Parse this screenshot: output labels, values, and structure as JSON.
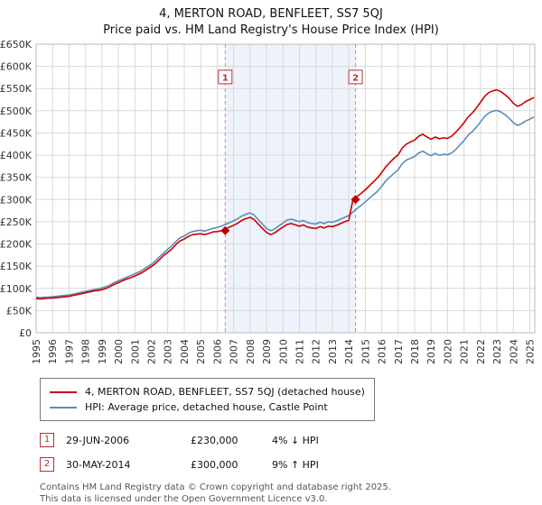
{
  "header": {
    "title": "4, MERTON ROAD, BENFLEET, SS7 5QJ",
    "subtitle": "Price paid vs. HM Land Registry's House Price Index (HPI)"
  },
  "chart_data": {
    "type": "line",
    "title": "4, MERTON ROAD, BENFLEET, SS7 5QJ",
    "subtitle": "Price paid vs. HM Land Registry's House Price Index (HPI)",
    "xlabel": "",
    "ylabel": "",
    "unit": "GBP thousands",
    "xlim": [
      1995,
      2025.3
    ],
    "ylim": [
      0,
      650
    ],
    "y_tick_step": 50,
    "x_tick_start": 1995,
    "x_tick_end": 2025,
    "flag_value": 575,
    "colors": {
      "shade": "#eef2fa",
      "grid": "#d8d8d8",
      "border": "#bbbbbb",
      "dashed": "#dd8888",
      "flag": "#b43333",
      "marker": "#bb0000"
    },
    "x": [
      1995,
      1995.25,
      1995.5,
      1995.75,
      1996,
      1996.25,
      1996.5,
      1996.75,
      1997,
      1997.25,
      1997.5,
      1997.75,
      1998,
      1998.25,
      1998.5,
      1998.75,
      1999,
      1999.25,
      1999.5,
      1999.75,
      2000,
      2000.25,
      2000.5,
      2000.75,
      2001,
      2001.25,
      2001.5,
      2001.75,
      2002,
      2002.25,
      2002.5,
      2002.75,
      2003,
      2003.25,
      2003.5,
      2003.75,
      2004,
      2004.25,
      2004.5,
      2004.75,
      2005,
      2005.25,
      2005.5,
      2005.75,
      2006,
      2006.25,
      2006.5,
      2006.75,
      2007,
      2007.25,
      2007.5,
      2007.75,
      2008,
      2008.25,
      2008.5,
      2008.75,
      2009,
      2009.25,
      2009.5,
      2009.75,
      2010,
      2010.25,
      2010.5,
      2010.75,
      2011,
      2011.25,
      2011.5,
      2011.75,
      2012,
      2012.25,
      2012.5,
      2012.75,
      2013,
      2013.25,
      2013.5,
      2013.75,
      2014,
      2014.25,
      2014.5,
      2014.75,
      2015,
      2015.25,
      2015.5,
      2015.75,
      2016,
      2016.25,
      2016.5,
      2016.75,
      2017,
      2017.25,
      2017.5,
      2017.75,
      2018,
      2018.25,
      2018.5,
      2018.75,
      2019,
      2019.25,
      2019.5,
      2019.75,
      2020,
      2020.25,
      2020.5,
      2020.75,
      2021,
      2021.25,
      2021.5,
      2021.75,
      2022,
      2022.25,
      2022.5,
      2022.75,
      2023,
      2023.25,
      2023.5,
      2023.75,
      2024,
      2024.25,
      2024.5,
      2024.75,
      2025,
      2025.25
    ],
    "series": [
      {
        "name": "4, MERTON ROAD, BENFLEET, SS7 5QJ (detached house)",
        "data_name": "property-price-line",
        "color": "#cc0000",
        "values": [
          77,
          76,
          77,
          78,
          78,
          79,
          80,
          81,
          82,
          84,
          86,
          88,
          90,
          92,
          94,
          95,
          97,
          100,
          104,
          109,
          113,
          117,
          121,
          124,
          128,
          132,
          137,
          143,
          149,
          156,
          165,
          174,
          181,
          189,
          199,
          207,
          211,
          217,
          221,
          222,
          223,
          221,
          224,
          227,
          228,
          230,
          234,
          238,
          242,
          247,
          253,
          257,
          260,
          255,
          245,
          235,
          226,
          221,
          225,
          232,
          238,
          244,
          246,
          243,
          240,
          243,
          238,
          236,
          235,
          239,
          236,
          240,
          239,
          242,
          246,
          250,
          253,
          300,
          307,
          314,
          322,
          331,
          340,
          349,
          361,
          374,
          384,
          393,
          401,
          416,
          425,
          430,
          434,
          443,
          447,
          441,
          436,
          441,
          437,
          439,
          438,
          443,
          452,
          462,
          473,
          486,
          495,
          506,
          519,
          532,
          541,
          545,
          547,
          543,
          536,
          528,
          517,
          510,
          514,
          521,
          525,
          530
        ]
      },
      {
        "name": "HPI: Average price, detached house, Castle Point",
        "data_name": "hpi-line",
        "color": "#5b8db8",
        "values": [
          80,
          79,
          80,
          80,
          81,
          82,
          83,
          84,
          85,
          87,
          89,
          91,
          93,
          95,
          97,
          99,
          101,
          104,
          108,
          113,
          117,
          121,
          125,
          129,
          133,
          137,
          142,
          148,
          154,
          162,
          171,
          180,
          188,
          196,
          206,
          214,
          218,
          224,
          228,
          230,
          231,
          229,
          232,
          235,
          237,
          240,
          244,
          248,
          252,
          257,
          263,
          267,
          270,
          265,
          255,
          245,
          235,
          230,
          234,
          241,
          247,
          254,
          256,
          253,
          250,
          253,
          248,
          246,
          245,
          249,
          246,
          250,
          249,
          252,
          256,
          260,
          264,
          272,
          280,
          287,
          295,
          303,
          311,
          319,
          330,
          342,
          351,
          359,
          367,
          381,
          389,
          393,
          397,
          405,
          409,
          403,
          399,
          404,
          400,
          402,
          401,
          405,
          413,
          423,
          433,
          445,
          453,
          463,
          475,
          487,
          495,
          499,
          501,
          497,
          491,
          483,
          473,
          467,
          471,
          477,
          481,
          486
        ]
      }
    ],
    "markers": [
      {
        "label": "1",
        "x": 2006.49,
        "y": 230
      },
      {
        "label": "2",
        "x": 2014.41,
        "y": 300
      }
    ],
    "shaded_region": [
      2006.49,
      2014.41
    ],
    "legend_position": "bottom"
  },
  "annotations": [
    {
      "num": "1",
      "date": "29-JUN-2006",
      "price": "£230,000",
      "hpi": "4% ↓ HPI"
    },
    {
      "num": "2",
      "date": "30-MAY-2014",
      "price": "£300,000",
      "hpi": "9% ↑ HPI"
    }
  ],
  "footer": {
    "line1": "Contains HM Land Registry data © Crown copyright and database right 2025.",
    "line2": "This data is licensed under the Open Government Licence v3.0."
  }
}
